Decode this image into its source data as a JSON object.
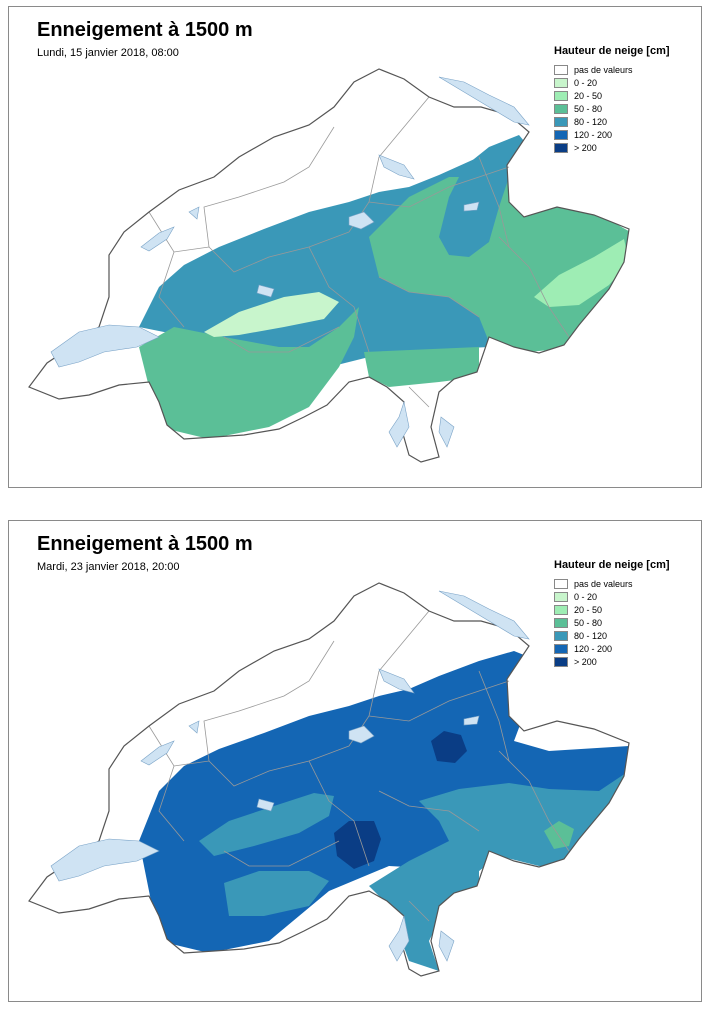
{
  "colors": {
    "no_value": "#ffffff",
    "c0_20": "#c8f5cc",
    "c20_50": "#9eedb4",
    "c50_80": "#5bbf97",
    "c80_120": "#3a98b8",
    "c120_200": "#1466b4",
    "c200": "#0a3d85",
    "lake": "#cfe3f3",
    "border": "#555555",
    "canton": "#999999"
  },
  "legend": {
    "title": "Hauteur de neige [cm]",
    "items": [
      {
        "label": "pas de valeurs",
        "color": "#ffffff"
      },
      {
        "label": "0 - 20",
        "color": "#c8f5cc"
      },
      {
        "label": "20 - 50",
        "color": "#9eedb4"
      },
      {
        "label": "50 - 80",
        "color": "#5bbf97"
      },
      {
        "label": "80 - 120",
        "color": "#3a98b8"
      },
      {
        "label": "120 - 200",
        "color": "#1466b4"
      },
      {
        "label": "> 200",
        "color": "#0a3d85"
      }
    ]
  },
  "maps": [
    {
      "title": "Enneigement à 1500 m",
      "subtitle": "Lundi, 15 janvier 2018, 08:00"
    },
    {
      "title": "Enneigement à 1500 m",
      "subtitle": "Mardi, 23 janvier 2018, 20:00"
    }
  ]
}
